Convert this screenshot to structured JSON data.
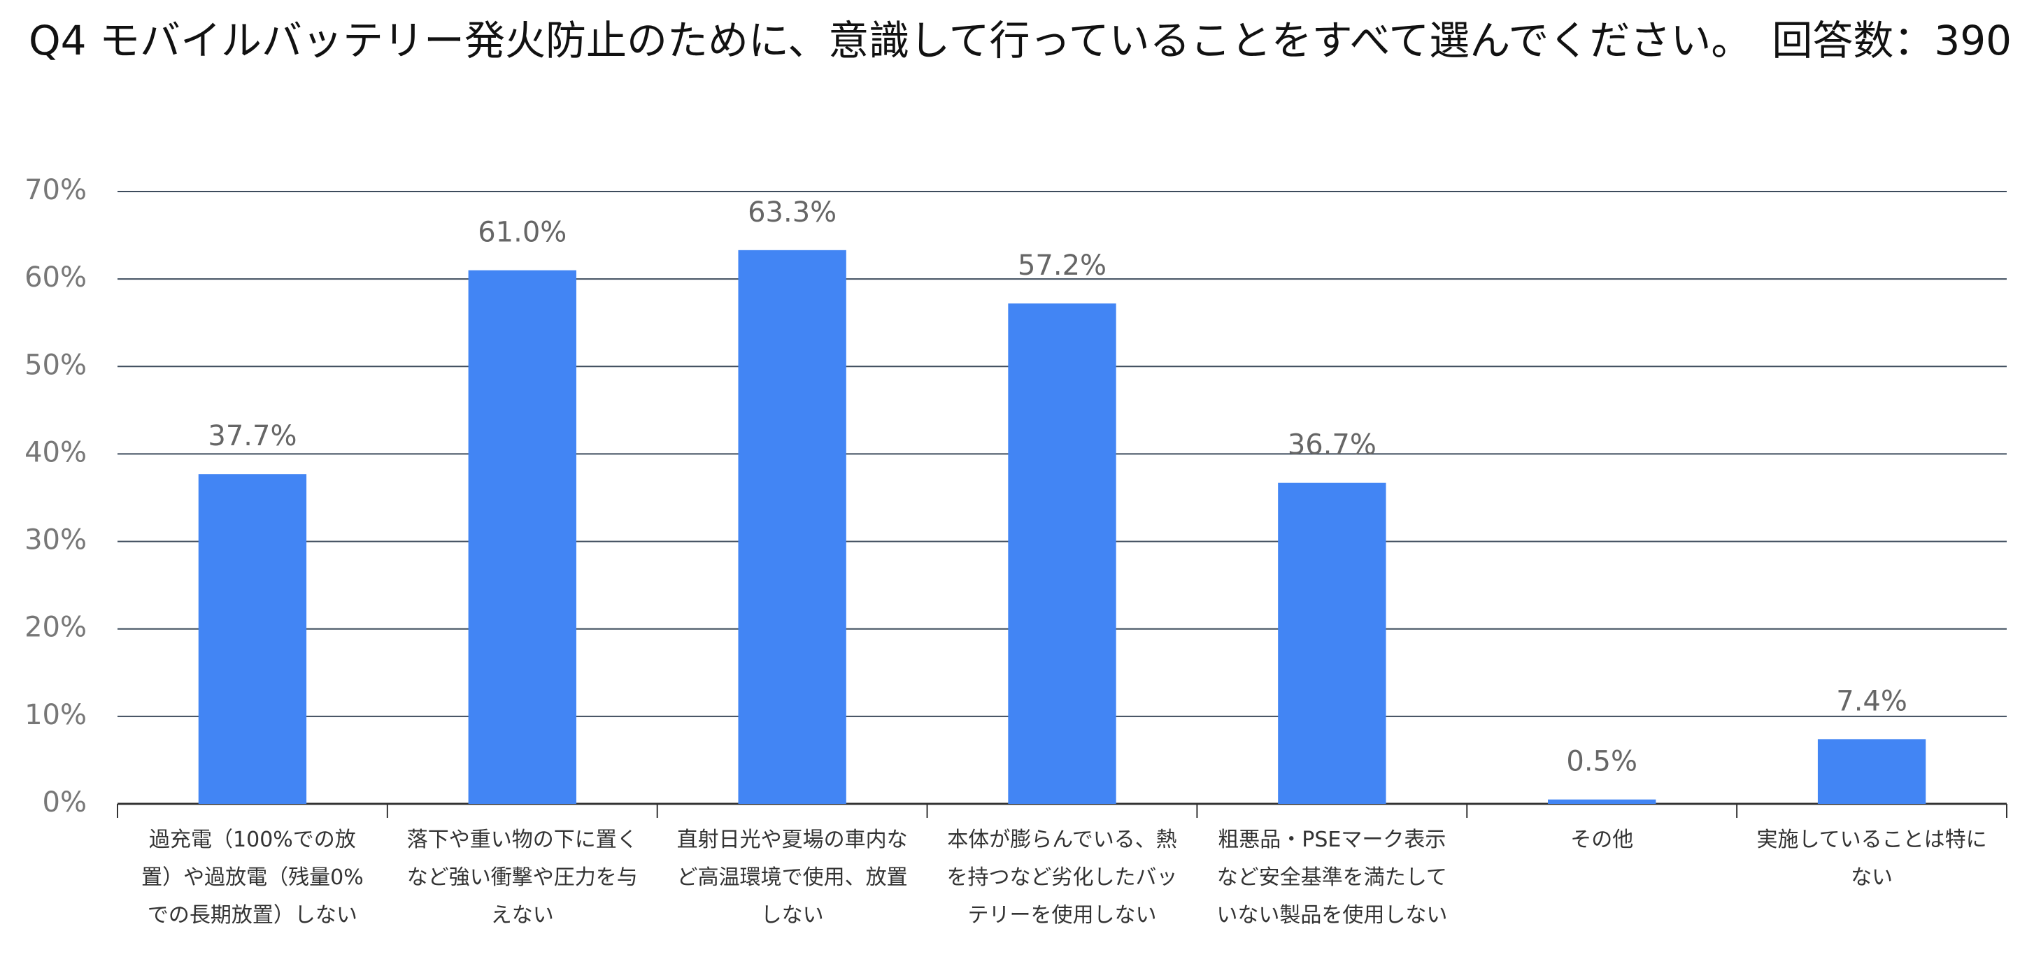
{
  "chart_data": {
    "type": "bar",
    "title": "Q4 モバイルバッテリー発火防止のために、意識して行っていることをすべて選んでください。　回答数：390",
    "categories": [
      "過充電（100%での放置）や過放電（残量0%での長期放置）しない",
      "落下や重い物の下に置くなど強い衝撃や圧力を与えない",
      "直射日光や夏場の車内など高温環境で使用、放置しない",
      "本体が膨らんでいる、熱を持つなど劣化したバッテリーを使用しない",
      "粗悪品・PSEマーク表示など安全基準を満たしていない製品を使用しない",
      "その他",
      "実施していることは特にない"
    ],
    "values": [
      37.7,
      61.0,
      63.3,
      57.2,
      36.7,
      0.5,
      7.4
    ],
    "value_labels": [
      "37.7%",
      "61.0%",
      "63.3%",
      "57.2%",
      "36.7%",
      "0.5%",
      "7.4%"
    ],
    "color": "#4285f4",
    "ylim": [
      0,
      70
    ],
    "yticks": [
      {
        "value": 0,
        "label": "0%"
      },
      {
        "value": 10,
        "label": "10%"
      },
      {
        "value": 20,
        "label": "20%"
      },
      {
        "value": 30,
        "label": "30%"
      },
      {
        "value": 40,
        "label": "40%"
      },
      {
        "value": 50,
        "label": "50%"
      },
      {
        "value": 60,
        "label": "60%"
      },
      {
        "value": 70,
        "label": "70%"
      }
    ],
    "grid": true
  }
}
